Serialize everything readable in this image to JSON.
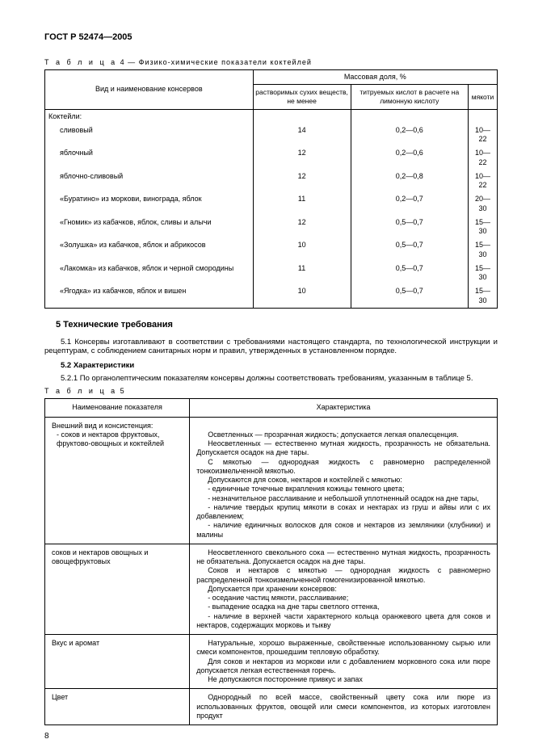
{
  "doc_id": "ГОСТ Р 52474—2005",
  "page_number": "8",
  "table4": {
    "caption_word": "Т а б л и ц а",
    "caption_rest": "  4 — Физико-химические показатели коктейлей",
    "col_name_header": "Вид и наименование консервов",
    "mass_header": "Массовая доля, %",
    "sub1": "растворимых сухих веществ, не менее",
    "sub2": "титруемых кислот в расчете на лимонную кислоту",
    "sub3": "мякоти",
    "group_label": "Коктейли:",
    "rows": [
      {
        "name": "сливовый",
        "v1": "14",
        "v2": "0,2—0,6",
        "v3": "10—22"
      },
      {
        "name": "яблочный",
        "v1": "12",
        "v2": "0,2—0,6",
        "v3": "10—22"
      },
      {
        "name": "яблочно-сливовый",
        "v1": "12",
        "v2": "0,2—0,8",
        "v3": "10—22"
      },
      {
        "name": "«Буратино» из моркови, винограда, яблок",
        "v1": "11",
        "v2": "0,2—0,7",
        "v3": "20—30"
      },
      {
        "name": "«Гномик» из кабачков, яблок, сливы и алычи",
        "v1": "12",
        "v2": "0,5—0,7",
        "v3": "15—30"
      },
      {
        "name": "«Золушка» из кабачков, яблок и абрикосов",
        "v1": "10",
        "v2": "0,5—0,7",
        "v3": "15—30"
      },
      {
        "name": "«Лакомка» из кабачков, яблок и черной смородины",
        "v1": "11",
        "v2": "0,5—0,7",
        "v3": "15—30"
      },
      {
        "name": "«Ягодка» из кабачков, яблок и вишен",
        "v1": "10",
        "v2": "0,5—0,7",
        "v3": "15—30"
      }
    ]
  },
  "section5": {
    "heading": "5  Технические требования",
    "p51": "5.1 Консервы изготавливают в соответствии с требованиями настоящего стандарта, по технологической инструкции и рецептурам, с соблюдением санитарных норм и правил, утвержденных в установленном порядке.",
    "h52": "5.2 Характеристики",
    "p521": "5.2.1 По органолептическим показателям консервы должны соответствовать требованиям, указанным в таблице 5."
  },
  "table5": {
    "caption_word": "Т а б л и ц а",
    "caption_rest": "  5",
    "col1": "Наименование показателя",
    "col2": "Характеристика",
    "rows": [
      {
        "name_lines": [
          "Внешний вид и консистенция:",
          "- соков и нектаров фруктовых, фруктово-овощных и коктейлей"
        ],
        "pad_before": 1,
        "char_paras": [
          "Осветленных — прозрачная жидкость; допускается легкая опалесценция.",
          "Неосветленных — естественно мутная жидкость, прозрачность не обязательна. Допускается осадок на дне тары.",
          "С мякотью — однородная жидкость с равномерно распределенной тонкоизмельченной мякотью.",
          "Допускаются для соков, нектаров и коктейлей с мякотью:",
          "- единичные точечные вкрапления кожицы темного цвета;",
          "- незначительное расслаивание и небольшой уплотненный осадок на дне тары,",
          "- наличие твердых крупиц мякоти в соках и нектарах из груш и айвы или с их добавлением;",
          "- наличие единичных волосков для соков и нектаров из земляники (клубники) и малины"
        ]
      },
      {
        "name_lines": [
          "соков и нектаров овощных и овощефруктовых"
        ],
        "char_paras": [
          "Неосветленного свекольного сока — естественно мутная жидкость, прозрачность не обязательна. Допускается осадок на дне тары.",
          "Соков и нектаров с мякотью — однородная жидкость с равномерно распределенной тонкоизмельченной гомогенизированной мякотью.",
          "Допускается при хранении консервов:",
          "- оседание частиц мякоти, расслаивание;",
          "- выпадение осадка на дне тары светлого оттенка,",
          "- наличие в верхней части характерного кольца оранжевого цвета для соков и нектаров, содержащих морковь и тыкву"
        ]
      },
      {
        "name_lines": [
          "Вкус и аромат"
        ],
        "char_paras": [
          "Натуральные, хорошо выраженные, свойственные использованному сырью или смеси компонентов, прошедшим тепловую обработку.",
          "Для соков и нектаров из моркови или с добавлением морковного сока или пюре допускается легкая естественная горечь.",
          "Не допускаются посторонние привкус и запах"
        ]
      },
      {
        "name_lines": [
          "Цвет"
        ],
        "char_paras": [
          "Однородный по всей массе, свойственный цвету сока или пюре из использованных фруктов, овощей или смеси компонентов, из которых изготовлен продукт"
        ]
      }
    ]
  }
}
